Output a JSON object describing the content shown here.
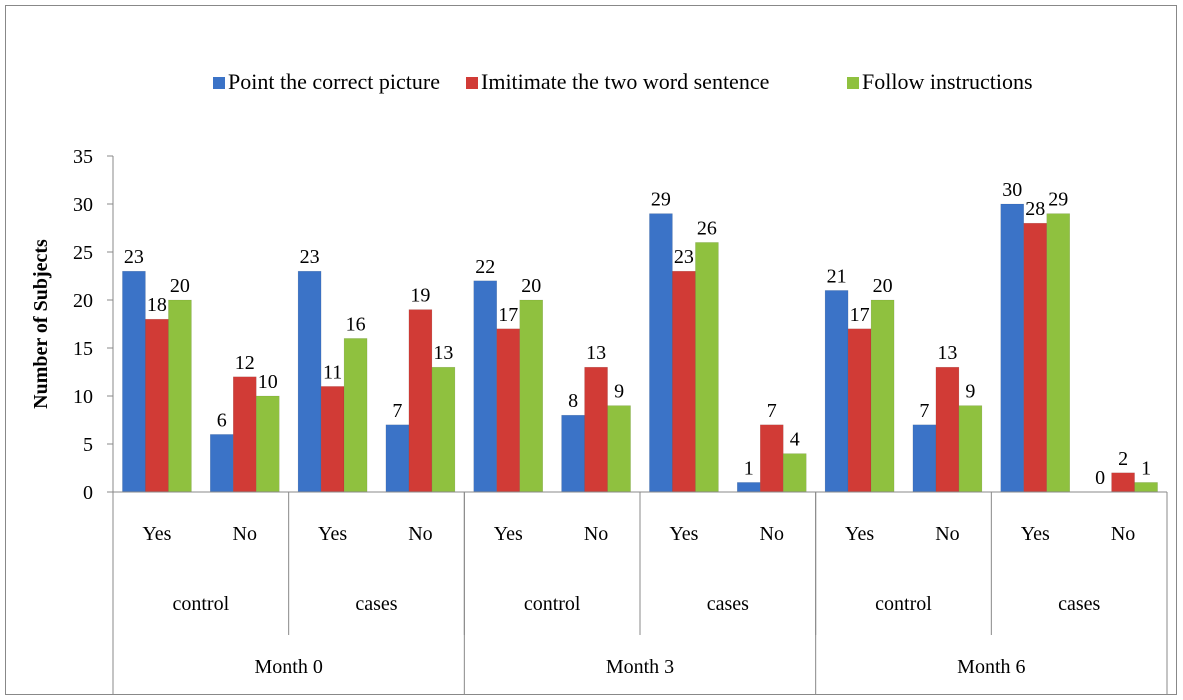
{
  "chart_data": {
    "type": "bar",
    "title": "",
    "xlabel": "",
    "ylabel": "Number of Subjects",
    "ylim": [
      0,
      35
    ],
    "yticks": [
      0,
      5,
      10,
      15,
      20,
      25,
      30,
      35
    ],
    "grid": false,
    "legend_position": "top",
    "categories": [
      {
        "month": "Month 0",
        "group": "control",
        "answer": "Yes"
      },
      {
        "month": "Month 0",
        "group": "control",
        "answer": "No"
      },
      {
        "month": "Month 0",
        "group": "cases",
        "answer": "Yes"
      },
      {
        "month": "Month 0",
        "group": "cases",
        "answer": "No"
      },
      {
        "month": "Month 3",
        "group": "control",
        "answer": "Yes"
      },
      {
        "month": "Month 3",
        "group": "control",
        "answer": "No"
      },
      {
        "month": "Month 3",
        "group": "cases",
        "answer": "Yes"
      },
      {
        "month": "Month 3",
        "group": "cases",
        "answer": "No"
      },
      {
        "month": "Month 6",
        "group": "control",
        "answer": "Yes"
      },
      {
        "month": "Month 6",
        "group": "control",
        "answer": "No"
      },
      {
        "month": "Month 6",
        "group": "cases",
        "answer": "Yes"
      },
      {
        "month": "Month 6",
        "group": "cases",
        "answer": "No"
      }
    ],
    "series": [
      {
        "name": "Point the correct picture",
        "color": "#3b73c7",
        "values": [
          23,
          6,
          23,
          7,
          22,
          8,
          29,
          1,
          21,
          7,
          30,
          0
        ]
      },
      {
        "name": "Imitimate the two word sentence",
        "color": "#d13b36",
        "values": [
          18,
          12,
          11,
          19,
          17,
          13,
          23,
          7,
          17,
          13,
          28,
          2
        ]
      },
      {
        "name": "Follow instructions",
        "color": "#8fc13f",
        "values": [
          20,
          10,
          16,
          13,
          20,
          9,
          26,
          4,
          20,
          9,
          29,
          1
        ]
      }
    ]
  }
}
